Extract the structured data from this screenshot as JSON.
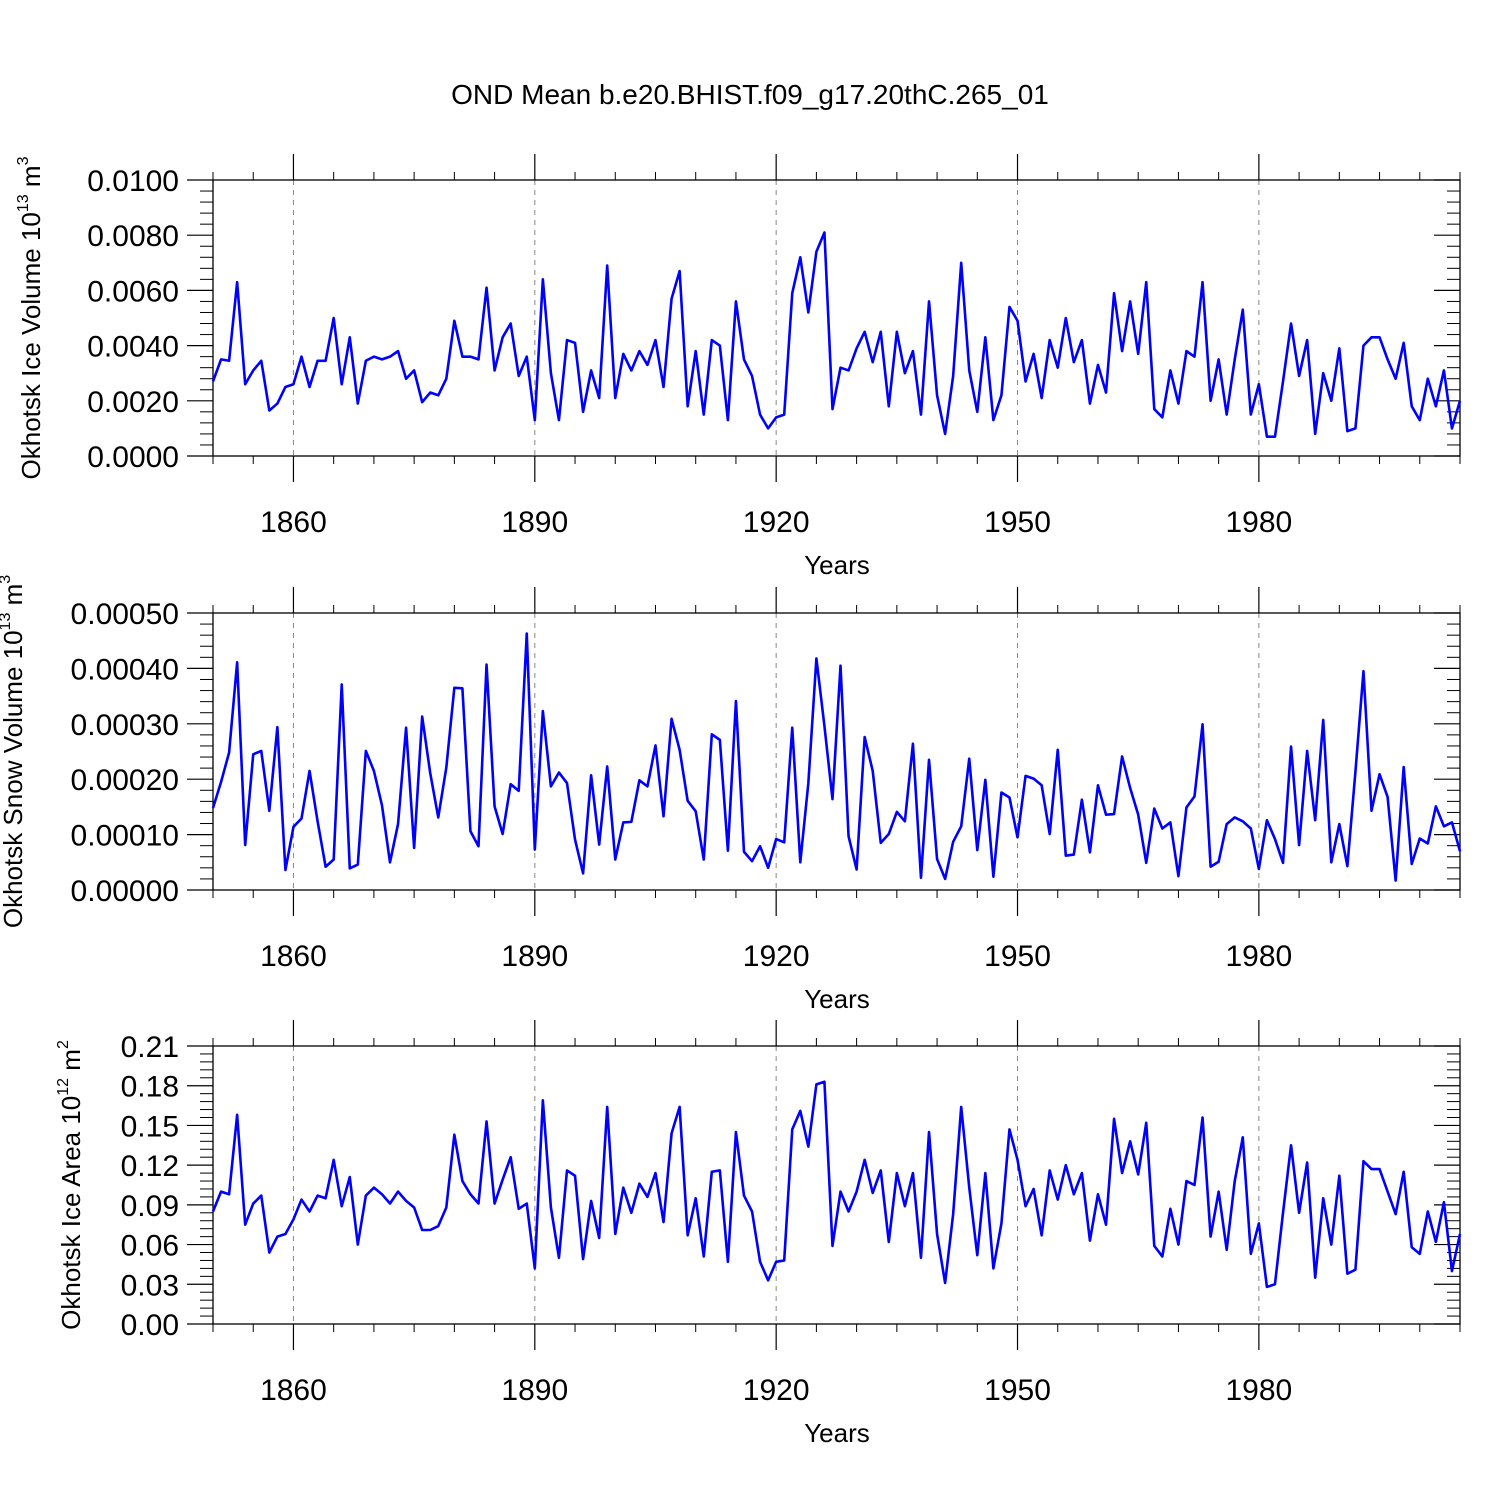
{
  "title": "OND Mean b.e20.BHIST.f09_g17.20thC.265_01",
  "colors": {
    "series": "#0000ff",
    "axis": "#000000",
    "grid": "#888888"
  },
  "chart_data": [
    {
      "type": "line",
      "ylabel": {
        "text": "Okhotsk Ice Volume 10",
        "sup": "13",
        "unit": " m",
        "unit_sup": "3"
      },
      "xlabel": "Years",
      "xlim": [
        1850,
        2005
      ],
      "ylim": [
        0,
        0.01
      ],
      "xticks": [
        1860,
        1890,
        1920,
        1950,
        1980
      ],
      "xtick_labels": [
        "1860",
        "1890",
        "1920",
        "1950",
        "1980"
      ],
      "yticks": [
        0,
        0.002,
        0.004,
        0.006,
        0.008,
        0.01
      ],
      "ytick_labels": [
        "0.0000",
        "0.0020",
        "0.0040",
        "0.0060",
        "0.0080",
        "0.0100"
      ],
      "x_start": 1850,
      "values": [
        0.0027,
        0.0035,
        0.00345,
        0.0063,
        0.0026,
        0.0031,
        0.00345,
        0.00165,
        0.0019,
        0.0025,
        0.0026,
        0.0036,
        0.0025,
        0.00345,
        0.00345,
        0.005,
        0.0026,
        0.0043,
        0.0019,
        0.00345,
        0.0036,
        0.0035,
        0.0036,
        0.0038,
        0.0028,
        0.0031,
        0.00195,
        0.0023,
        0.0022,
        0.0028,
        0.0049,
        0.0036,
        0.0036,
        0.0035,
        0.0061,
        0.0031,
        0.0043,
        0.0048,
        0.0029,
        0.0036,
        0.0013,
        0.0064,
        0.003,
        0.0013,
        0.0042,
        0.0041,
        0.0016,
        0.0031,
        0.0021,
        0.0069,
        0.0021,
        0.0037,
        0.0031,
        0.0038,
        0.0033,
        0.0042,
        0.0025,
        0.0057,
        0.0067,
        0.0018,
        0.0038,
        0.0015,
        0.0042,
        0.004,
        0.0013,
        0.0056,
        0.0035,
        0.0029,
        0.0015,
        0.001,
        0.0014,
        0.0015,
        0.0059,
        0.0072,
        0.0052,
        0.0074,
        0.0081,
        0.0017,
        0.0032,
        0.0031,
        0.0039,
        0.0045,
        0.0034,
        0.0045,
        0.0018,
        0.0045,
        0.003,
        0.0038,
        0.0015,
        0.0056,
        0.0022,
        0.0008,
        0.0029,
        0.007,
        0.0031,
        0.0016,
        0.0043,
        0.0013,
        0.0022,
        0.0054,
        0.0049,
        0.0027,
        0.0037,
        0.0021,
        0.0042,
        0.0032,
        0.005,
        0.0034,
        0.0042,
        0.0019,
        0.0033,
        0.0023,
        0.0059,
        0.0038,
        0.0056,
        0.0037,
        0.0063,
        0.0017,
        0.0014,
        0.0031,
        0.0019,
        0.0038,
        0.0036,
        0.0063,
        0.002,
        0.0035,
        0.0015,
        0.0035,
        0.0053,
        0.0015,
        0.0026,
        0.0007,
        0.0007,
        0.0027,
        0.0048,
        0.0029,
        0.0042,
        0.0008,
        0.003,
        0.002,
        0.0039,
        0.0009,
        0.001,
        0.004,
        0.0043,
        0.0043,
        0.0035,
        0.0028,
        0.0041,
        0.0018,
        0.0013,
        0.0028,
        0.0018,
        0.0031,
        0.001,
        0.002
      ]
    },
    {
      "type": "line",
      "ylabel": {
        "text": "Okhotsk Snow Volume 10",
        "sup": "13",
        "unit": " m",
        "unit_sup": "3"
      },
      "xlabel": "Years",
      "xlim": [
        1850,
        2005
      ],
      "ylim": [
        0,
        0.0005
      ],
      "xticks": [
        1860,
        1890,
        1920,
        1950,
        1980
      ],
      "xtick_labels": [
        "1860",
        "1890",
        "1920",
        "1950",
        "1980"
      ],
      "yticks": [
        0,
        0.0001,
        0.0002,
        0.0003,
        0.0004,
        0.0005
      ],
      "ytick_labels": [
        "0.00000",
        "0.00010",
        "0.00020",
        "0.00030",
        "0.00040",
        "0.00050"
      ],
      "x_start": 1850,
      "values": [
        0.000148,
        0.000195,
        0.000248,
        0.000411,
        8.1e-05,
        0.000245,
        0.000251,
        0.000143,
        0.000294,
        3.6e-05,
        0.000114,
        0.000129,
        0.000215,
        0.000124,
        4.2e-05,
        5.5e-05,
        0.000371,
        3.9e-05,
        4.6e-05,
        0.000251,
        0.000215,
        0.000153,
        5e-05,
        0.000119,
        0.000293,
        7.6e-05,
        0.000313,
        0.000211,
        0.000131,
        0.000221,
        0.000365,
        0.000364,
        0.000106,
        7.9e-05,
        0.000407,
        0.000151,
        0.000101,
        0.000191,
        0.000179,
        0.000463,
        7.3e-05,
        0.000323,
        0.000187,
        0.000212,
        0.000193,
        9.1e-05,
        3e-05,
        0.000207,
        8.2e-05,
        0.000223,
        5.5e-05,
        0.000122,
        0.000123,
        0.000198,
        0.000187,
        0.000261,
        0.000133,
        0.000309,
        0.000253,
        0.000161,
        0.000142,
        5.5e-05,
        0.000281,
        0.000271,
        7.1e-05,
        0.000341,
        6.9e-05,
        5.2e-05,
        7.9e-05,
        4e-05,
        9.2e-05,
        8.6e-05,
        0.000293,
        5e-05,
        0.000193,
        0.000418,
        0.000296,
        0.000164,
        0.000405,
        9.7e-05,
        3.7e-05,
        0.000276,
        0.000215,
        8.5e-05,
        0.000101,
        0.000141,
        0.000124,
        0.000264,
        2.2e-05,
        0.000235,
        5.6e-05,
        2e-05,
        8.7e-05,
        0.000115,
        0.000237,
        7.2e-05,
        0.000199,
        2.4e-05,
        0.000176,
        0.000167,
        9.5e-05,
        0.000206,
        0.000201,
        0.000189,
        0.000101,
        0.000253,
        6.2e-05,
        6.4e-05,
        0.000163,
        6.8e-05,
        0.000189,
        0.000136,
        0.000137,
        0.000241,
        0.000184,
        0.000136,
        4.9e-05,
        0.000147,
        0.000111,
        0.000122,
        2.5e-05,
        0.000149,
        0.000169,
        0.000299,
        4.2e-05,
        5.1e-05,
        0.000119,
        0.000131,
        0.000124,
        0.000111,
        3.8e-05,
        0.000126,
        9.2e-05,
        4.9e-05,
        0.000259,
        8.1e-05,
        0.000251,
        0.000126,
        0.000307,
        5e-05,
        0.000119,
        4.3e-05,
        0.000213,
        0.000395,
        0.000143,
        0.000209,
        0.000168,
        1.7e-05,
        0.000222,
        4.7e-05,
        9.3e-05,
        8.4e-05,
        0.000151,
        0.000115,
        0.000122,
        7e-05
      ]
    },
    {
      "type": "line",
      "ylabel": {
        "text": "Okhotsk Ice Area 10",
        "sup": "12",
        "unit": " m",
        "unit_sup": "2"
      },
      "xlabel": "Years",
      "xlim": [
        1850,
        2005
      ],
      "ylim": [
        0,
        0.21
      ],
      "xticks": [
        1860,
        1890,
        1920,
        1950,
        1980
      ],
      "xtick_labels": [
        "1860",
        "1890",
        "1920",
        "1950",
        "1980"
      ],
      "yticks": [
        0,
        0.03,
        0.06,
        0.09,
        0.12,
        0.15,
        0.18,
        0.21
      ],
      "ytick_labels": [
        "0.00",
        "0.03",
        "0.06",
        "0.09",
        "0.12",
        "0.15",
        "0.18",
        "0.21"
      ],
      "x_start": 1850,
      "values": [
        0.085,
        0.1,
        0.098,
        0.158,
        0.075,
        0.091,
        0.097,
        0.054,
        0.066,
        0.068,
        0.079,
        0.094,
        0.085,
        0.097,
        0.095,
        0.124,
        0.089,
        0.111,
        0.06,
        0.097,
        0.103,
        0.098,
        0.091,
        0.1,
        0.093,
        0.088,
        0.071,
        0.071,
        0.074,
        0.088,
        0.143,
        0.108,
        0.098,
        0.091,
        0.153,
        0.091,
        0.109,
        0.126,
        0.087,
        0.091,
        0.042,
        0.169,
        0.088,
        0.05,
        0.116,
        0.112,
        0.049,
        0.093,
        0.065,
        0.164,
        0.068,
        0.103,
        0.084,
        0.106,
        0.096,
        0.114,
        0.077,
        0.144,
        0.164,
        0.067,
        0.095,
        0.051,
        0.115,
        0.116,
        0.047,
        0.145,
        0.097,
        0.085,
        0.047,
        0.033,
        0.047,
        0.048,
        0.147,
        0.161,
        0.134,
        0.181,
        0.183,
        0.059,
        0.1,
        0.085,
        0.1,
        0.124,
        0.099,
        0.116,
        0.062,
        0.114,
        0.089,
        0.114,
        0.05,
        0.145,
        0.068,
        0.031,
        0.083,
        0.164,
        0.103,
        0.052,
        0.114,
        0.042,
        0.076,
        0.147,
        0.124,
        0.089,
        0.102,
        0.067,
        0.116,
        0.094,
        0.12,
        0.098,
        0.114,
        0.063,
        0.098,
        0.075,
        0.155,
        0.114,
        0.138,
        0.113,
        0.152,
        0.059,
        0.051,
        0.087,
        0.06,
        0.108,
        0.105,
        0.156,
        0.066,
        0.1,
        0.056,
        0.108,
        0.141,
        0.053,
        0.076,
        0.028,
        0.03,
        0.084,
        0.135,
        0.084,
        0.122,
        0.035,
        0.095,
        0.06,
        0.112,
        0.038,
        0.041,
        0.123,
        0.117,
        0.117,
        0.1,
        0.083,
        0.115,
        0.058,
        0.053,
        0.085,
        0.062,
        0.092,
        0.04,
        0.068
      ]
    }
  ]
}
